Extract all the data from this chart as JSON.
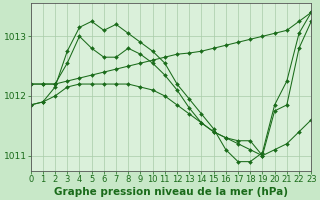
{
  "background_color": "#c8e8c8",
  "plot_bg_color": "#daf0da",
  "line_color": "#1a6b1a",
  "marker_color": "#1a6b1a",
  "grid_color": "#a8cca8",
  "title": "Graphe pression niveau de la mer (hPa)",
  "xlim": [
    0,
    23
  ],
  "ylim": [
    1010.75,
    1013.55
  ],
  "yticks": [
    1011,
    1012,
    1013
  ],
  "xticks": [
    0,
    1,
    2,
    3,
    4,
    5,
    6,
    7,
    8,
    9,
    10,
    11,
    12,
    13,
    14,
    15,
    16,
    17,
    18,
    19,
    20,
    21,
    22,
    23
  ],
  "series": [
    {
      "x": [
        0,
        1,
        2,
        3,
        4,
        5,
        6,
        7,
        8,
        9,
        10,
        11,
        12,
        13,
        14,
        15,
        16,
        17,
        18,
        19,
        20,
        21,
        22,
        23
      ],
      "y": [
        1012.2,
        1012.2,
        1012.2,
        1012.25,
        1012.3,
        1012.35,
        1012.4,
        1012.45,
        1012.5,
        1012.55,
        1012.6,
        1012.65,
        1012.7,
        1012.72,
        1012.75,
        1012.8,
        1012.85,
        1012.9,
        1012.95,
        1013.0,
        1013.05,
        1013.1,
        1013.25,
        1013.4
      ]
    },
    {
      "x": [
        0,
        1,
        2,
        3,
        4,
        5,
        6,
        7,
        8,
        9,
        10,
        11,
        12,
        13,
        14,
        15,
        16,
        17,
        18,
        19,
        20,
        21,
        22,
        23
      ],
      "y": [
        1011.85,
        1011.9,
        1012.15,
        1012.75,
        1013.15,
        1013.25,
        1013.1,
        1013.2,
        1013.05,
        1012.9,
        1012.75,
        1012.55,
        1012.2,
        1011.95,
        1011.7,
        1011.45,
        1011.1,
        1010.9,
        1010.9,
        1011.05,
        1011.85,
        1012.25,
        1013.05,
        1013.4
      ]
    },
    {
      "x": [
        0,
        1,
        2,
        3,
        4,
        5,
        6,
        7,
        8,
        9,
        10,
        11,
        12,
        13,
        14,
        15,
        16,
        17,
        18,
        19,
        20,
        21,
        22,
        23
      ],
      "y": [
        1012.2,
        1012.2,
        1012.2,
        1012.55,
        1013.0,
        1012.8,
        1012.65,
        1012.65,
        1012.8,
        1012.7,
        1012.55,
        1012.35,
        1012.1,
        1011.8,
        1011.55,
        1011.4,
        1011.3,
        1011.25,
        1011.25,
        1011.0,
        1011.75,
        1011.85,
        1012.8,
        1013.25
      ]
    },
    {
      "x": [
        0,
        1,
        2,
        3,
        4,
        5,
        6,
        7,
        8,
        9,
        10,
        11,
        12,
        13,
        14,
        15,
        16,
        17,
        18,
        19,
        20,
        21,
        22,
        23
      ],
      "y": [
        1011.85,
        1011.9,
        1012.0,
        1012.15,
        1012.2,
        1012.2,
        1012.2,
        1012.2,
        1012.2,
        1012.15,
        1012.1,
        1012.0,
        1011.85,
        1011.7,
        1011.55,
        1011.4,
        1011.3,
        1011.2,
        1011.1,
        1011.0,
        1011.1,
        1011.2,
        1011.4,
        1011.6
      ]
    }
  ],
  "title_fontsize": 7.5,
  "tick_fontsize": 6,
  "title_color": "#1a6b1a",
  "tick_color": "#1a6b1a",
  "axis_color": "#555555"
}
